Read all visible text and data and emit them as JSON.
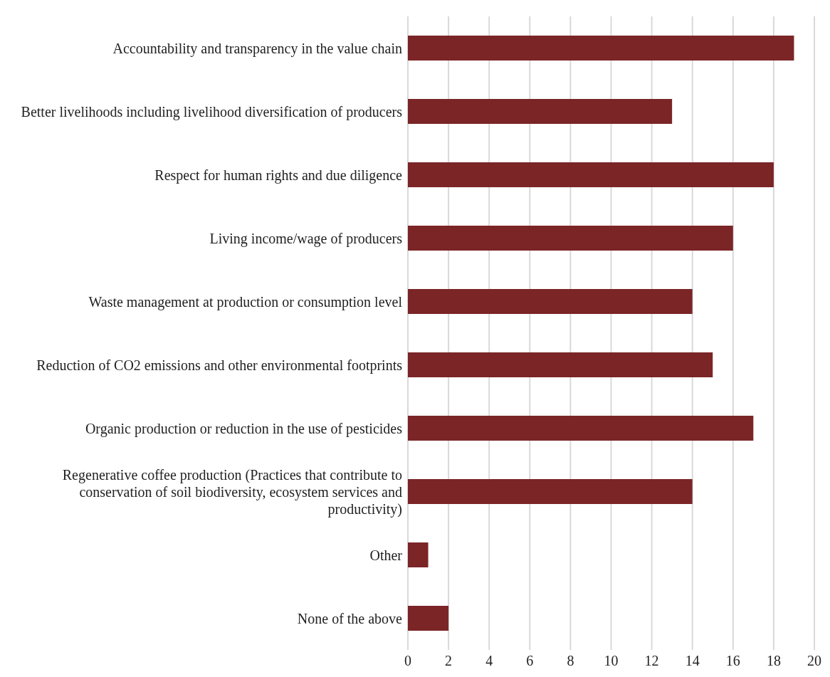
{
  "chart_data": {
    "type": "bar",
    "orientation": "horizontal",
    "categories": [
      "Accountability and transparency in the value chain",
      "Better livelihoods including livelihood diversification of producers",
      "Respect for human rights and due diligence",
      "Living income/wage of producers",
      "Waste management at production or consumption level",
      "Reduction of CO2 emissions and other environmental footprints",
      "Organic production or reduction in the use of pesticides",
      "Regenerative coffee production (Practices that contribute to conservation of soil biodiversity, ecosystem services and productivity)",
      "Other",
      "None of the above"
    ],
    "values": [
      19,
      13,
      18,
      16,
      14,
      15,
      17,
      14,
      1,
      2
    ],
    "color": "#7b2527",
    "xlim": [
      0,
      20
    ],
    "xticks": [
      0,
      2,
      4,
      6,
      8,
      10,
      12,
      14,
      16,
      18,
      20
    ],
    "grid": "x"
  }
}
